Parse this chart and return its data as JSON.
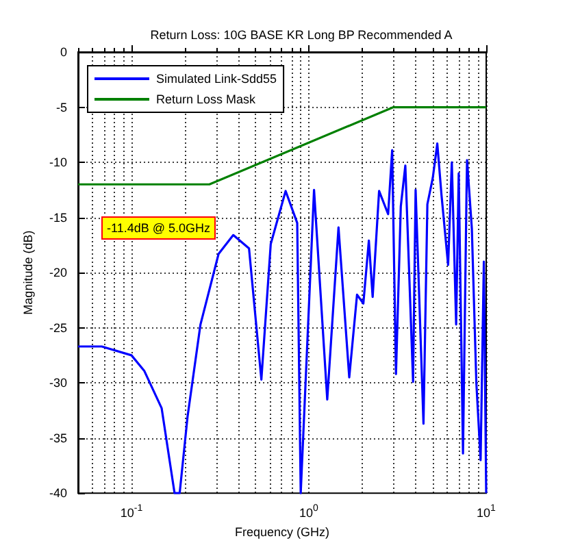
{
  "chart_data": {
    "type": "line",
    "title": "Return Loss: 10G BASE KR Long BP Recommended A",
    "xlabel": "Frequency (GHz)",
    "ylabel": "Magnitude (dB)",
    "log": "x",
    "xlim": [
      0.05,
      10
    ],
    "xticks": [
      {
        "value": 0.1,
        "label": "10$^{-1}$"
      },
      {
        "value": 1,
        "label": "10$^{0}$"
      },
      {
        "value": 10,
        "label": "10$^{1}$"
      }
    ],
    "ylim": [
      -40,
      0
    ],
    "yticks": [
      -40,
      -35,
      -30,
      -25,
      -20,
      -15,
      -10,
      -5,
      0
    ],
    "grid": true,
    "legend": "top left",
    "line_style": "solid",
    "marker": "none",
    "annotations": [
      "-11.4dB @ 5.0GHz"
    ],
    "series": [
      {
        "name": "Simulated Link-Sdd55",
        "color": "#0000ff",
        "x": [
          0.05,
          0.068,
          0.1,
          0.118,
          0.148,
          0.175,
          0.187,
          0.207,
          0.245,
          0.31,
          0.375,
          0.46,
          0.54,
          0.61,
          0.74,
          0.86,
          0.9,
          1.07,
          1.27,
          1.47,
          1.69,
          1.87,
          2.03,
          2.18,
          2.29,
          2.49,
          2.8,
          2.95,
          3.1,
          3.3,
          3.5,
          3.87,
          4.0,
          4.43,
          4.66,
          5.0,
          5.3,
          5.6,
          6.1,
          6.4,
          6.77,
          7.0,
          7.4,
          7.75,
          7.8,
          8.3,
          8.8,
          9.3,
          9.7,
          10
        ],
        "values": [
          -26.7,
          -26.7,
          -27.5,
          -28.9,
          -32.3,
          -40,
          -40,
          -33.1,
          -24.7,
          -18.3,
          -16.6,
          -17.8,
          -29.7,
          -17.4,
          -12.6,
          -15.5,
          -40,
          -12.5,
          -31.5,
          -15.9,
          -29.5,
          -22,
          -22.8,
          -17.1,
          -22.2,
          -12.6,
          -14.7,
          -8.9,
          -29.2,
          -14,
          -10.3,
          -29.9,
          -12.5,
          -33.7,
          -13.8,
          -11.4,
          -8.3,
          -13,
          -19.3,
          -10,
          -24.7,
          -11,
          -36.4,
          -12.5,
          -9.8,
          -16,
          -30,
          -37,
          -19,
          -40
        ]
      },
      {
        "name": "Return Loss Mask",
        "color": "#008000",
        "x": [
          0.05,
          0.275,
          3,
          10
        ],
        "values": [
          -12,
          -12,
          -5,
          -5
        ]
      }
    ]
  }
}
